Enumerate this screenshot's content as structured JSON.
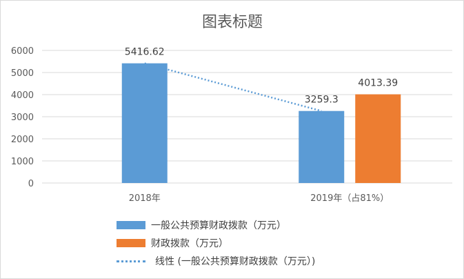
{
  "chart_data": {
    "type": "bar",
    "title": "图表标题",
    "categories": [
      "2018年",
      "2019年（占81%）"
    ],
    "series": [
      {
        "name": "一般公共预算财政拨款（万元）",
        "color": "#5b9bd5",
        "values": [
          5416.62,
          3259.3
        ],
        "labels": [
          "5416.62",
          "3259.3"
        ]
      },
      {
        "name": "财政拨款（万元）",
        "color": "#ed7d31",
        "values": [
          null,
          4013.39
        ],
        "labels": [
          "",
          "4013.39"
        ]
      }
    ],
    "trendline": {
      "name": "线性 (一般公共预算财政拨款（万元）)",
      "type": "linear",
      "of_series": "一般公共预算财政拨款（万元）",
      "color": "#5b9bd5"
    },
    "ylim": [
      0,
      6000
    ],
    "yticks": [
      0,
      1000,
      2000,
      3000,
      4000,
      5000,
      6000
    ],
    "grid": true,
    "legend_position": "bottom"
  }
}
